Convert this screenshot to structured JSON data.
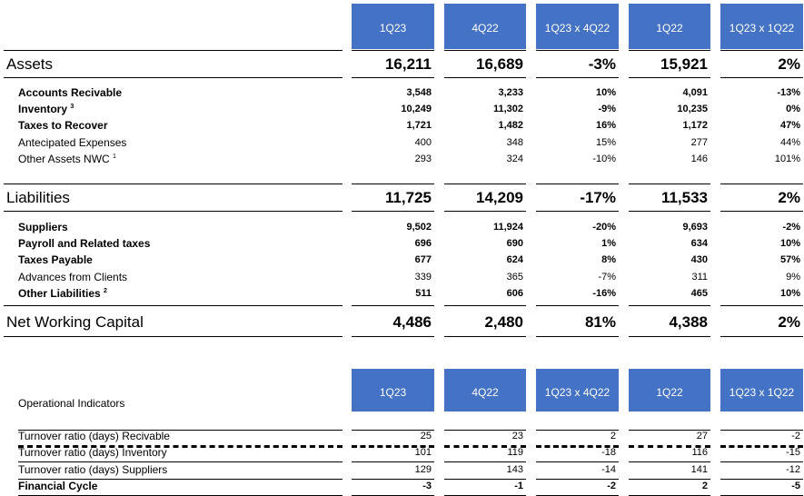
{
  "headers": [
    "1Q23",
    "4Q22",
    "1Q23 x 4Q22",
    "1Q22",
    "1Q23 x 1Q22"
  ],
  "assets": {
    "label": "Assets",
    "values": [
      "16,211",
      "16,689",
      "-3%",
      "15,921",
      "2%"
    ],
    "rows": [
      {
        "label": "Accounts Recivable",
        "sup": "",
        "bold": true,
        "values": [
          "3,548",
          "3,233",
          "10%",
          "4,091",
          "-13%"
        ]
      },
      {
        "label": "Inventory",
        "sup": "3",
        "bold": true,
        "values": [
          "10,249",
          "11,302",
          "-9%",
          "10,235",
          "0%"
        ]
      },
      {
        "label": "Taxes to Recover",
        "sup": "",
        "bold": true,
        "values": [
          "1,721",
          "1,482",
          "16%",
          "1,172",
          "47%"
        ]
      },
      {
        "label": "Antecipated Expenses",
        "sup": "",
        "bold": false,
        "values": [
          "400",
          "348",
          "15%",
          "277",
          "44%"
        ]
      },
      {
        "label": "Other Assets NWC",
        "sup": "1",
        "bold": false,
        "values": [
          "293",
          "324",
          "-10%",
          "146",
          "101%"
        ]
      }
    ]
  },
  "liabilities": {
    "label": "Liabilities",
    "values": [
      "11,725",
      "14,209",
      "-17%",
      "11,533",
      "2%"
    ],
    "rows": [
      {
        "label": "Suppliers",
        "sup": "",
        "bold": true,
        "values": [
          "9,502",
          "11,924",
          "-20%",
          "9,693",
          "-2%"
        ]
      },
      {
        "label": "Payroll and Related taxes",
        "sup": "",
        "bold": true,
        "values": [
          "696",
          "690",
          "1%",
          "634",
          "10%"
        ]
      },
      {
        "label": "Taxes Payable",
        "sup": "",
        "bold": true,
        "values": [
          "677",
          "624",
          "8%",
          "430",
          "57%"
        ]
      },
      {
        "label": "Advances from Clients",
        "sup": "",
        "bold": false,
        "values": [
          "339",
          "365",
          "-7%",
          "311",
          "9%"
        ]
      },
      {
        "label": "Other Liabilities",
        "sup": "2",
        "bold": true,
        "values": [
          "511",
          "606",
          "-16%",
          "465",
          "10%"
        ]
      }
    ]
  },
  "nwc": {
    "label": "Net Working Capital",
    "values": [
      "4,486",
      "2,480",
      "81%",
      "4,388",
      "2%"
    ]
  },
  "operational": {
    "title": "Operational Indicators",
    "rows": [
      {
        "label": "Turnover ratio (days) Recivable",
        "bold": false,
        "values": [
          "25",
          "23",
          "2",
          "27",
          "-2"
        ]
      },
      {
        "label": "Turnover ratio (days) Inventory",
        "bold": false,
        "values": [
          "101",
          "119",
          "-18",
          "116",
          "-15"
        ]
      },
      {
        "label": "Turnover ratio (days) Suppliers",
        "bold": false,
        "values": [
          "129",
          "143",
          "-14",
          "141",
          "-12"
        ]
      },
      {
        "label": "Financial Cycle",
        "bold": true,
        "values": [
          "-3",
          "-1",
          "-2",
          "2",
          "-5"
        ]
      }
    ]
  }
}
